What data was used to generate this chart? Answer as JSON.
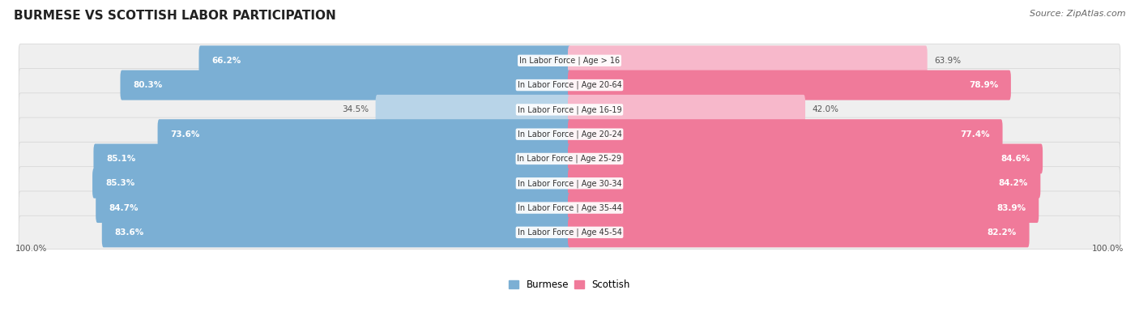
{
  "title": "BURMESE VS SCOTTISH LABOR PARTICIPATION",
  "source": "Source: ZipAtlas.com",
  "categories": [
    "In Labor Force | Age > 16",
    "In Labor Force | Age 20-64",
    "In Labor Force | Age 16-19",
    "In Labor Force | Age 20-24",
    "In Labor Force | Age 25-29",
    "In Labor Force | Age 30-34",
    "In Labor Force | Age 35-44",
    "In Labor Force | Age 45-54"
  ],
  "burmese": [
    66.2,
    80.3,
    34.5,
    73.6,
    85.1,
    85.3,
    84.7,
    83.6
  ],
  "scottish": [
    63.9,
    78.9,
    42.0,
    77.4,
    84.6,
    84.2,
    83.9,
    82.2
  ],
  "burmese_color": "#7BAFD4",
  "burmese_color_light": "#B8D4E8",
  "scottish_color": "#F07A9A",
  "scottish_color_light": "#F7B8CB",
  "bg_row_color": "#EFEFEF",
  "bg_row_edge": "#D8D8D8",
  "max_val": 100.0,
  "bar_height": 0.62,
  "legend_burmese": "Burmese",
  "legend_scottish": "Scottish",
  "title_fontsize": 11,
  "label_fontsize": 7.5,
  "cat_fontsize": 7.0,
  "source_fontsize": 8
}
